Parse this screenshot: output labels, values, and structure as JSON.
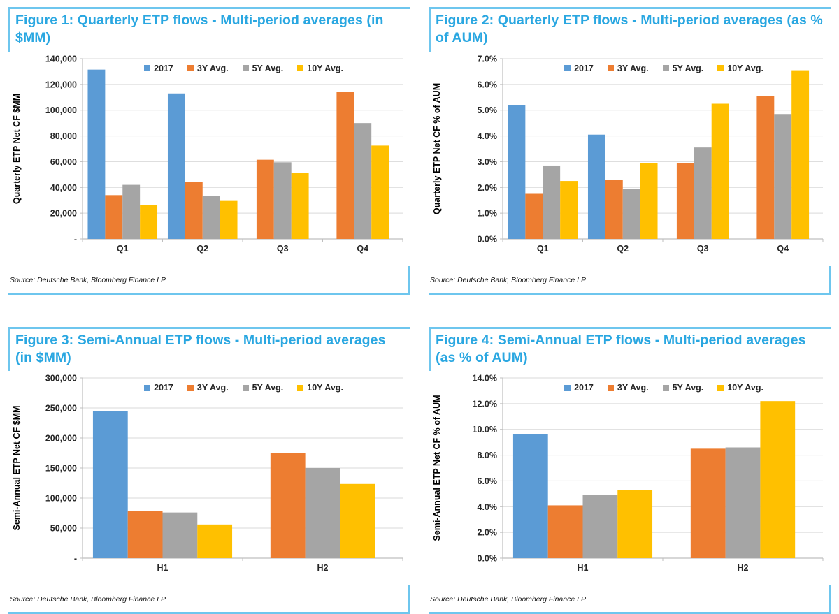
{
  "page": {
    "background": "#ffffff"
  },
  "colors": {
    "title_blue": "#2aa7e1",
    "bracket_blue": "#6ec6ee",
    "gridline": "#d9d9d9",
    "axis_line": "#bfbfbf",
    "tick_text": "#262626",
    "axis_title_text": "#000000"
  },
  "chart_data": [
    {
      "figure_label": "Figure 1",
      "title": "Figure 1: Quarterly ETP flows - Multi-period averages (in $MM)",
      "source": "Source: Deutsche Bank, Bloomberg Finance LP",
      "type": "bar",
      "categories": [
        "Q1",
        "Q2",
        "Q3",
        "Q4"
      ],
      "series": [
        {
          "name": "2017",
          "color": "#5b9bd5",
          "values": [
            131500,
            113000,
            null,
            null
          ]
        },
        {
          "name": "3Y Avg.",
          "color": "#ed7d31",
          "values": [
            34000,
            44000,
            61500,
            114000
          ]
        },
        {
          "name": "5Y Avg.",
          "color": "#a5a5a5",
          "values": [
            42000,
            33500,
            59500,
            90000
          ]
        },
        {
          "name": "10Y Avg.",
          "color": "#ffc000",
          "values": [
            26500,
            29500,
            51000,
            72500
          ]
        }
      ],
      "xlabel": "",
      "ylabel": "Quarterly ETP Net CF $MM",
      "ylim": [
        0,
        140000
      ],
      "ytick_step": 20000,
      "tick_format": "thousands",
      "zero_label": "-",
      "grid": true,
      "legend_position": "top-center"
    },
    {
      "figure_label": "Figure 2",
      "title": "Figure 2: Quarterly ETP flows - Multi-period averages (as % of AUM)",
      "source": "Source: Deutsche Bank, Bloomberg Finance LP",
      "type": "bar",
      "categories": [
        "Q1",
        "Q2",
        "Q3",
        "Q4"
      ],
      "series": [
        {
          "name": "2017",
          "color": "#5b9bd5",
          "values": [
            5.2,
            4.05,
            null,
            null
          ]
        },
        {
          "name": "3Y Avg.",
          "color": "#ed7d31",
          "values": [
            1.75,
            2.3,
            2.95,
            5.55
          ]
        },
        {
          "name": "5Y Avg.",
          "color": "#a5a5a5",
          "values": [
            2.85,
            1.95,
            3.55,
            4.85
          ]
        },
        {
          "name": "10Y Avg.",
          "color": "#ffc000",
          "values": [
            2.25,
            2.95,
            5.25,
            6.55
          ]
        }
      ],
      "xlabel": "",
      "ylabel": "Quarterly ETP Net CF % of AUM",
      "ylim": [
        0,
        7
      ],
      "ytick_step": 1,
      "tick_format": "percent1",
      "zero_label": "0.0%",
      "grid": true,
      "legend_position": "top-center"
    },
    {
      "figure_label": "Figure 3",
      "title": "Figure 3: Semi-Annual ETP flows - Multi-period averages (in $MM)",
      "source": "Source: Deutsche Bank, Bloomberg Finance LP",
      "type": "bar",
      "categories": [
        "H1",
        "H2"
      ],
      "series": [
        {
          "name": "2017",
          "color": "#5b9bd5",
          "values": [
            245000,
            null
          ]
        },
        {
          "name": "3Y Avg.",
          "color": "#ed7d31",
          "values": [
            79000,
            175000
          ]
        },
        {
          "name": "5Y Avg.",
          "color": "#a5a5a5",
          "values": [
            76000,
            150000
          ]
        },
        {
          "name": "10Y Avg.",
          "color": "#ffc000",
          "values": [
            56000,
            123500
          ]
        }
      ],
      "xlabel": "",
      "ylabel": "Semi-Annual ETP Net CF $MM",
      "ylim": [
        0,
        300000
      ],
      "ytick_step": 50000,
      "tick_format": "thousands",
      "zero_label": "-",
      "grid": true,
      "legend_position": "top-center"
    },
    {
      "figure_label": "Figure 4",
      "title": "Figure 4: Semi-Annual ETP flows - Multi-period averages (as % of AUM)",
      "source": "Source: Deutsche Bank, Bloomberg Finance LP",
      "type": "bar",
      "categories": [
        "H1",
        "H2"
      ],
      "series": [
        {
          "name": "2017",
          "color": "#5b9bd5",
          "values": [
            9.65,
            null
          ]
        },
        {
          "name": "3Y Avg.",
          "color": "#ed7d31",
          "values": [
            4.1,
            8.5
          ]
        },
        {
          "name": "5Y Avg.",
          "color": "#a5a5a5",
          "values": [
            4.9,
            8.6
          ]
        },
        {
          "name": "10Y Avg.",
          "color": "#ffc000",
          "values": [
            5.3,
            12.2
          ]
        }
      ],
      "xlabel": "",
      "ylabel": "Semi-Annual ETP Net CF % of AUM",
      "ylim": [
        0,
        14
      ],
      "ytick_step": 2,
      "tick_format": "percent1",
      "zero_label": "0.0%",
      "grid": true,
      "legend_position": "top-center"
    }
  ]
}
